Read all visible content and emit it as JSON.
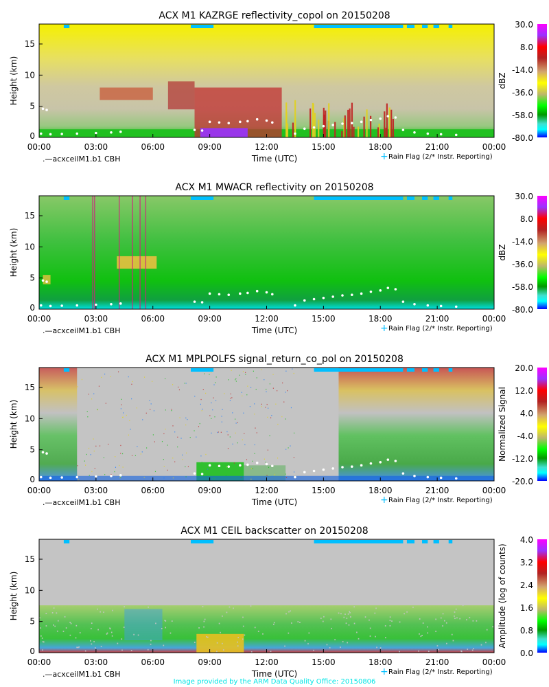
{
  "chart_data": [
    {
      "type": "heatmap",
      "title": "ACX M1 KAZRGE reflectivity_copol on 20150208",
      "xlabel": "Time (UTC)",
      "ylabel": "Height (km)",
      "colorbar_label": "dBZ",
      "colorbar_ticks": [
        "30.0",
        "8.0",
        "-14.0",
        "-36.0",
        "-58.0",
        "-80.0"
      ],
      "clim": [
        -80,
        30
      ],
      "style": "kazr"
    },
    {
      "type": "heatmap",
      "title": "ACX M1 MWACR reflectivity on 20150208",
      "xlabel": "Time (UTC)",
      "ylabel": "Height (km)",
      "colorbar_label": "dBZ",
      "colorbar_ticks": [
        "30.0",
        "8.0",
        "-14.0",
        "-36.0",
        "-58.0",
        "-80.0"
      ],
      "clim": [
        -80,
        30
      ],
      "style": "mwacr"
    },
    {
      "type": "heatmap",
      "title": "ACX M1 MPLPOLFS signal_return_co_pol on 20150208",
      "xlabel": "Time (UTC)",
      "ylabel": "Height (km)",
      "colorbar_label": "Normalized Signal",
      "colorbar_ticks": [
        "20.0",
        "12.0",
        "4.0",
        "-4.0",
        "-12.0",
        "-20.0"
      ],
      "clim": [
        -20,
        20
      ],
      "style": "mpl"
    },
    {
      "type": "heatmap",
      "title": "ACX M1 CEIL backscatter on 20150208",
      "xlabel": "Time (UTC)",
      "ylabel": "Height (km)",
      "colorbar_label": "Amplitude (log of counts)",
      "colorbar_ticks": [
        "4.0",
        "3.2",
        "2.4",
        "1.6",
        "0.8",
        "0.0"
      ],
      "clim": [
        0,
        4
      ],
      "style": "ceil"
    }
  ],
  "shared": {
    "x_ticks": [
      "00:00",
      "03:00",
      "06:00",
      "09:00",
      "12:00",
      "15:00",
      "18:00",
      "21:00",
      "00:00"
    ],
    "xlim_hours": [
      0,
      24
    ],
    "ylim_km": [
      0,
      18
    ],
    "y_ticks": [
      "5",
      "10",
      "15"
    ],
    "cbh_legend": ".—acxceilM1.b1 CBH",
    "rain_legend": "Rain Flag (2/* Instr. Reporting)",
    "rain_flag_hours": [
      [
        1.3,
        1.6
      ],
      [
        8.0,
        9.2
      ],
      [
        14.5,
        19.2
      ],
      [
        19.4,
        19.8
      ],
      [
        20.2,
        20.5
      ],
      [
        20.8,
        21.1
      ],
      [
        21.6,
        21.8
      ]
    ],
    "cbh_points": [
      [
        0.1,
        0.6
      ],
      [
        0.6,
        0.5
      ],
      [
        1.2,
        0.55
      ],
      [
        2.0,
        0.6
      ],
      [
        3.0,
        0.7
      ],
      [
        3.8,
        0.8
      ],
      [
        4.3,
        0.9
      ],
      [
        0.2,
        4.6
      ],
      [
        0.4,
        4.4
      ],
      [
        8.2,
        1.2
      ],
      [
        8.6,
        1.1
      ],
      [
        9.0,
        2.5
      ],
      [
        9.5,
        2.4
      ],
      [
        10.0,
        2.3
      ],
      [
        10.6,
        2.5
      ],
      [
        11.0,
        2.6
      ],
      [
        11.5,
        2.9
      ],
      [
        12.0,
        2.7
      ],
      [
        12.3,
        2.4
      ],
      [
        13.5,
        0.6
      ],
      [
        14.0,
        1.4
      ],
      [
        14.5,
        1.6
      ],
      [
        15.0,
        1.8
      ],
      [
        15.5,
        2.0
      ],
      [
        16.0,
        2.2
      ],
      [
        16.5,
        2.3
      ],
      [
        17.0,
        2.5
      ],
      [
        17.5,
        2.8
      ],
      [
        18.0,
        3.0
      ],
      [
        18.4,
        3.4
      ],
      [
        18.8,
        3.2
      ],
      [
        19.2,
        1.2
      ],
      [
        19.8,
        0.8
      ],
      [
        20.5,
        0.6
      ],
      [
        21.2,
        0.5
      ],
      [
        22.0,
        0.4
      ]
    ],
    "colors": {
      "rain": "#00bfff",
      "cbh": "#ffffff",
      "credit": "#00e5e5"
    }
  },
  "credit": "Image provided by the ARM Data Quality Office: 20150806"
}
